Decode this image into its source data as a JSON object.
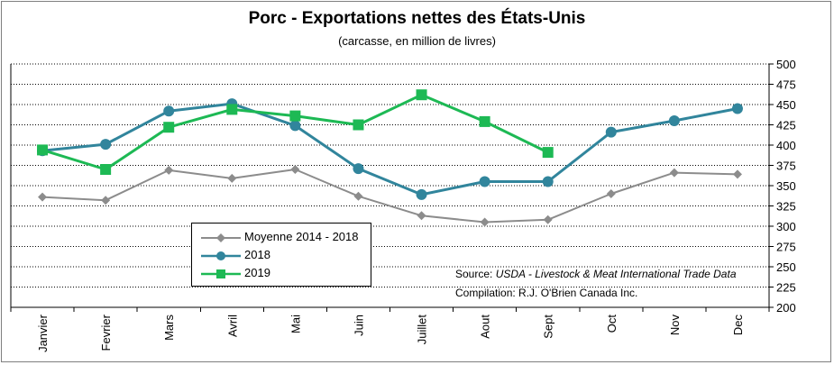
{
  "chart_data": {
    "type": "line",
    "title": "Porc - Exportations nettes des États-Unis",
    "subtitle": "(carcasse, en million de livres)",
    "xlabel": "",
    "ylabel": "",
    "categories": [
      "Janvier",
      "Fevrier",
      "Mars",
      "Avril",
      "Mai",
      "Juin",
      "Juillet",
      "Aout",
      "Sept",
      "Oct",
      "Nov",
      "Dec"
    ],
    "ylim": [
      200,
      500
    ],
    "yticks": [
      200,
      225,
      250,
      275,
      300,
      325,
      350,
      375,
      400,
      425,
      450,
      475,
      500
    ],
    "ytick_labels": [
      "200",
      "225",
      "250",
      "275",
      "300",
      "325",
      "350",
      "375",
      "400",
      "425",
      "450",
      "475",
      "500"
    ],
    "y_axis_side": "right",
    "grid": "horizontal dotted",
    "legend_position": "lower-left",
    "series": [
      {
        "name": "Moyenne 2014 - 2018",
        "color": "#8c8c8c",
        "marker": "diamond",
        "values": [
          336,
          332,
          369,
          359,
          370,
          337,
          313,
          305,
          308,
          340,
          366,
          364
        ]
      },
      {
        "name": "2018",
        "color": "#31859c",
        "marker": "circle",
        "values": [
          393,
          401,
          442,
          451,
          424,
          371,
          339,
          355,
          355,
          416,
          430,
          445
        ]
      },
      {
        "name": "2019",
        "color": "#1db954",
        "marker": "square",
        "values": [
          394,
          370,
          422,
          444,
          436,
          425,
          462,
          429,
          391,
          null,
          null,
          null
        ]
      }
    ]
  },
  "legend": {
    "items": [
      "Moyenne 2014 - 2018",
      "2018",
      "2019"
    ]
  },
  "notes": {
    "source_prefix": "Source: ",
    "source_text": "USDA - Livestock & Meat International Trade Data",
    "compilation": "Compilation:  R.J. O'Brien Canada Inc."
  }
}
